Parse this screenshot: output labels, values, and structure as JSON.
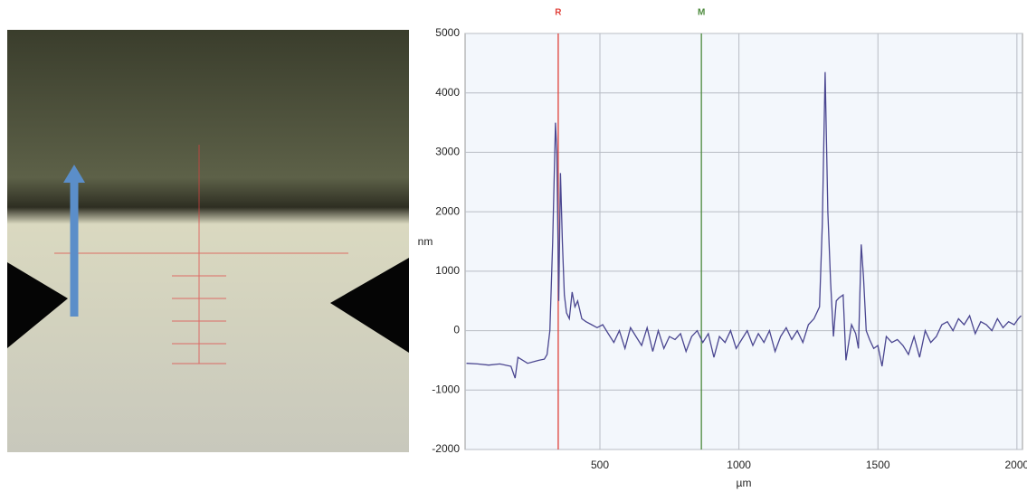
{
  "chart_data": {
    "type": "line",
    "x_label": "µm",
    "y_label": "nm",
    "xlim": [
      15,
      2020
    ],
    "ylim": [
      -2000,
      5000
    ],
    "xticks": [
      500,
      1000,
      1500,
      2000
    ],
    "yticks": [
      5000,
      4000,
      3000,
      2000,
      1000,
      0,
      -1000,
      -2000
    ],
    "grid": true,
    "cursors": [
      {
        "label": "R",
        "x": 350,
        "color": "#e0413a"
      },
      {
        "label": "M",
        "x": 865,
        "color": "#4c8a3c"
      }
    ],
    "series": [
      {
        "color": "#4a4690",
        "x": [
          20,
          60,
          100,
          140,
          180,
          195,
          205,
          240,
          280,
          300,
          310,
          320,
          330,
          340,
          345,
          352,
          358,
          365,
          372,
          380,
          390,
          400,
          410,
          420,
          435,
          450,
          470,
          490,
          510,
          530,
          550,
          570,
          590,
          610,
          630,
          650,
          670,
          690,
          710,
          730,
          750,
          770,
          790,
          810,
          830,
          850,
          870,
          890,
          910,
          930,
          950,
          970,
          990,
          1010,
          1030,
          1050,
          1070,
          1090,
          1110,
          1130,
          1150,
          1170,
          1190,
          1210,
          1230,
          1250,
          1270,
          1290,
          1300,
          1310,
          1320,
          1330,
          1340,
          1350,
          1360,
          1375,
          1385,
          1395,
          1405,
          1420,
          1430,
          1440,
          1448,
          1458,
          1470,
          1485,
          1500,
          1515,
          1530,
          1550,
          1570,
          1590,
          1610,
          1630,
          1650,
          1670,
          1690,
          1710,
          1730,
          1750,
          1770,
          1790,
          1810,
          1830,
          1850,
          1870,
          1890,
          1910,
          1930,
          1950,
          1970,
          1990,
          2005,
          2015
        ],
        "values": [
          -550,
          -560,
          -580,
          -560,
          -600,
          -800,
          -450,
          -550,
          -500,
          -480,
          -400,
          0,
          1500,
          3500,
          3000,
          500,
          2650,
          1500,
          600,
          300,
          200,
          650,
          400,
          500,
          200,
          150,
          100,
          50,
          100,
          -50,
          -200,
          0,
          -300,
          50,
          -100,
          -250,
          50,
          -350,
          0,
          -300,
          -100,
          -150,
          -50,
          -350,
          -100,
          0,
          -200,
          -50,
          -450,
          -100,
          -200,
          0,
          -300,
          -150,
          0,
          -250,
          -50,
          -200,
          0,
          -350,
          -100,
          50,
          -150,
          0,
          -200,
          100,
          200,
          400,
          1800,
          4350,
          2000,
          800,
          -100,
          500,
          550,
          600,
          -500,
          -200,
          100,
          -50,
          -300,
          1450,
          900,
          0,
          -150,
          -300,
          -250,
          -600,
          -100,
          -200,
          -150,
          -250,
          -400,
          -100,
          -450,
          0,
          -200,
          -100,
          100,
          150,
          0,
          200,
          100,
          250,
          -50,
          150,
          100,
          0,
          200,
          50,
          150,
          100,
          200,
          250
        ]
      }
    ]
  }
}
